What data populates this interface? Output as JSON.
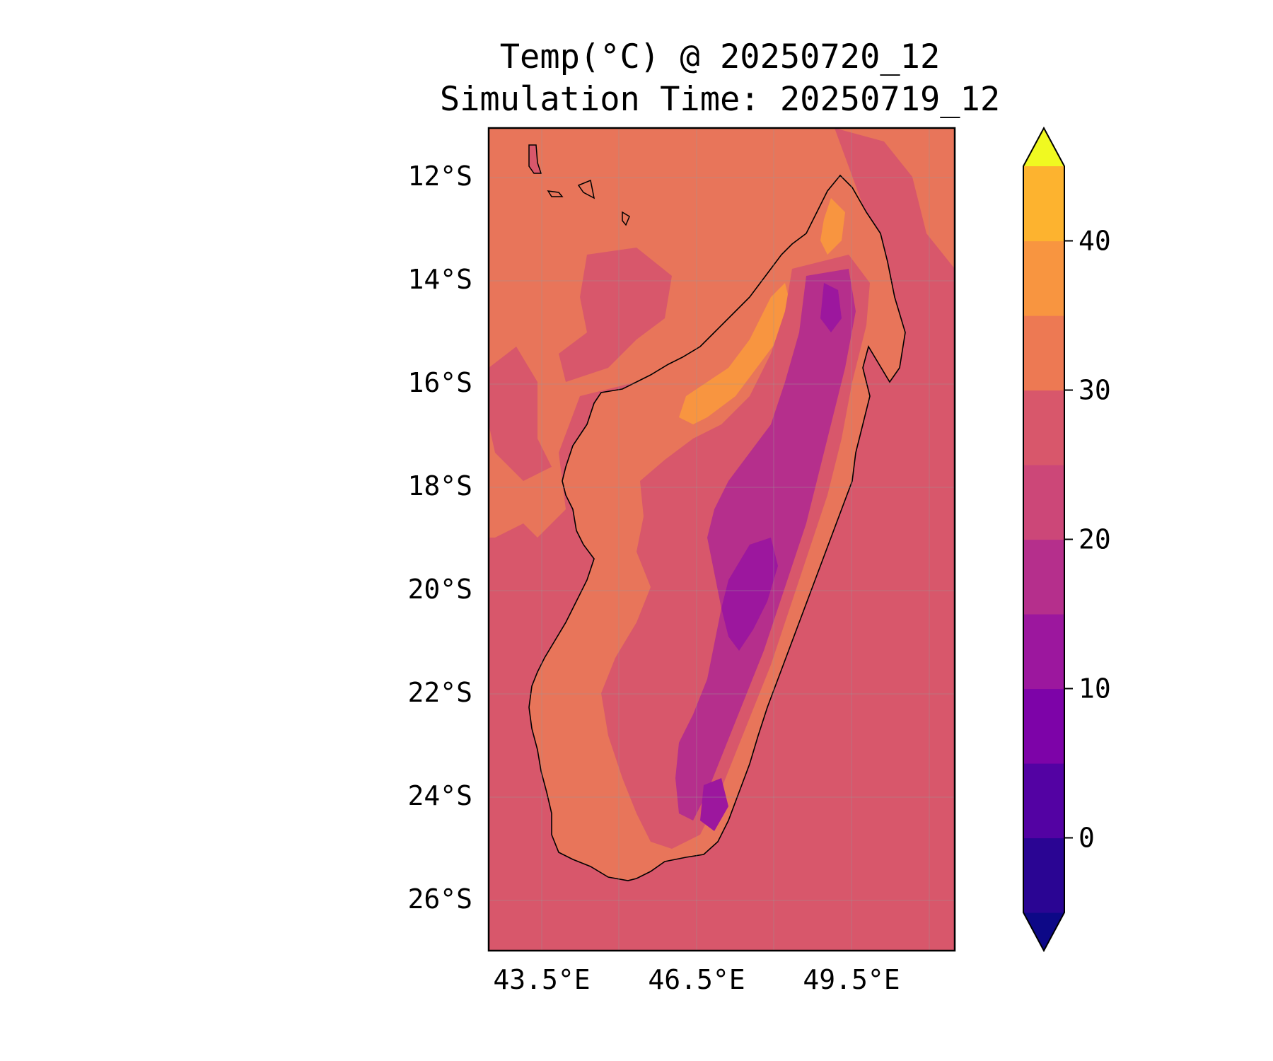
{
  "title": {
    "line1": "Temp(°C) @ 20250720_12",
    "line2": "Simulation Time: 20250719_12"
  },
  "map": {
    "region": "Madagascar",
    "lon_range": [
      42.5,
      51.5
    ],
    "lat_range": [
      -27.0,
      -11.1
    ],
    "x_ticks": [
      "43.5°E",
      "46.5°E",
      "49.5°E"
    ],
    "y_ticks": [
      "12°S",
      "14°S",
      "16°S",
      "18°S",
      "20°S",
      "22°S",
      "24°S",
      "26°S"
    ],
    "gridlines": true
  },
  "colorbar": {
    "min": -5,
    "max": 45,
    "step": 5,
    "extend": "both",
    "tick_values": [
      0,
      10,
      20,
      30,
      40
    ],
    "tick_labels": [
      "0",
      "10",
      "20",
      "30",
      "40"
    ],
    "colors": [
      "#0d0887",
      "#2a0593",
      "#5302a3",
      "#7d03a8",
      "#9c179e",
      "#b52f8c",
      "#cc4778",
      "#d8576b",
      "#ed7953",
      "#f89540",
      "#fdb32f",
      "#f3e520",
      "#f0f921"
    ]
  },
  "colors": {
    "ocean_south": "#d8576b",
    "ocean_north": "#e8755a",
    "coast": "#000000"
  }
}
